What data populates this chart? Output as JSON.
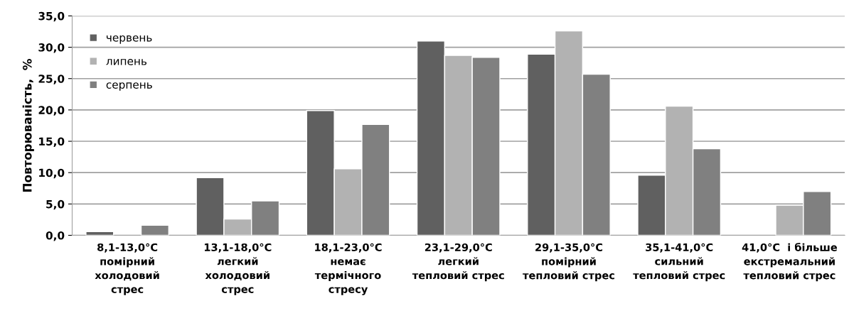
{
  "chart_data": {
    "type": "bar",
    "ylabel": "Повторюваність,  %",
    "categories": [
      "8,1-13,0°C\nпомірний\nхолодовий\nстрес",
      "13,1-18,0°C\nлегкий\nхолодовий\nстрес",
      "18,1-23,0°C\nнемає\nтермічного\nстресу",
      "23,1-29,0°C\nлегкий\nтепловий стрес",
      "29,1-35,0°C\nпомірний\nтепловий стрес",
      "35,1-41,0°C\nсильний\nтепловий стрес",
      "41,0°C  і більше\nекстремальний\nтепловий стрес"
    ],
    "series": [
      {
        "name": "червень",
        "color": "#606060",
        "values": [
          0.6,
          9.2,
          19.9,
          31.0,
          28.9,
          9.6,
          null
        ]
      },
      {
        "name": "липень",
        "color": "#b2b2b2",
        "values": [
          null,
          2.6,
          10.6,
          28.7,
          32.6,
          20.6,
          4.8
        ]
      },
      {
        "name": "серпень",
        "color": "#808080",
        "values": [
          1.6,
          5.5,
          17.7,
          28.4,
          25.7,
          13.8,
          7.0
        ]
      }
    ],
    "ylim": [
      0,
      35
    ],
    "yticks": [
      {
        "value": 0,
        "label": "0,0"
      },
      {
        "value": 5,
        "label": "5,0"
      },
      {
        "value": 10,
        "label": "10,0"
      },
      {
        "value": 15,
        "label": "15,0"
      },
      {
        "value": 20,
        "label": "20,0"
      },
      {
        "value": 25,
        "label": "25,0"
      },
      {
        "value": 30,
        "label": "30,0"
      },
      {
        "value": 35,
        "label": "35,0"
      }
    ],
    "grid": "y",
    "legend": "top left"
  }
}
